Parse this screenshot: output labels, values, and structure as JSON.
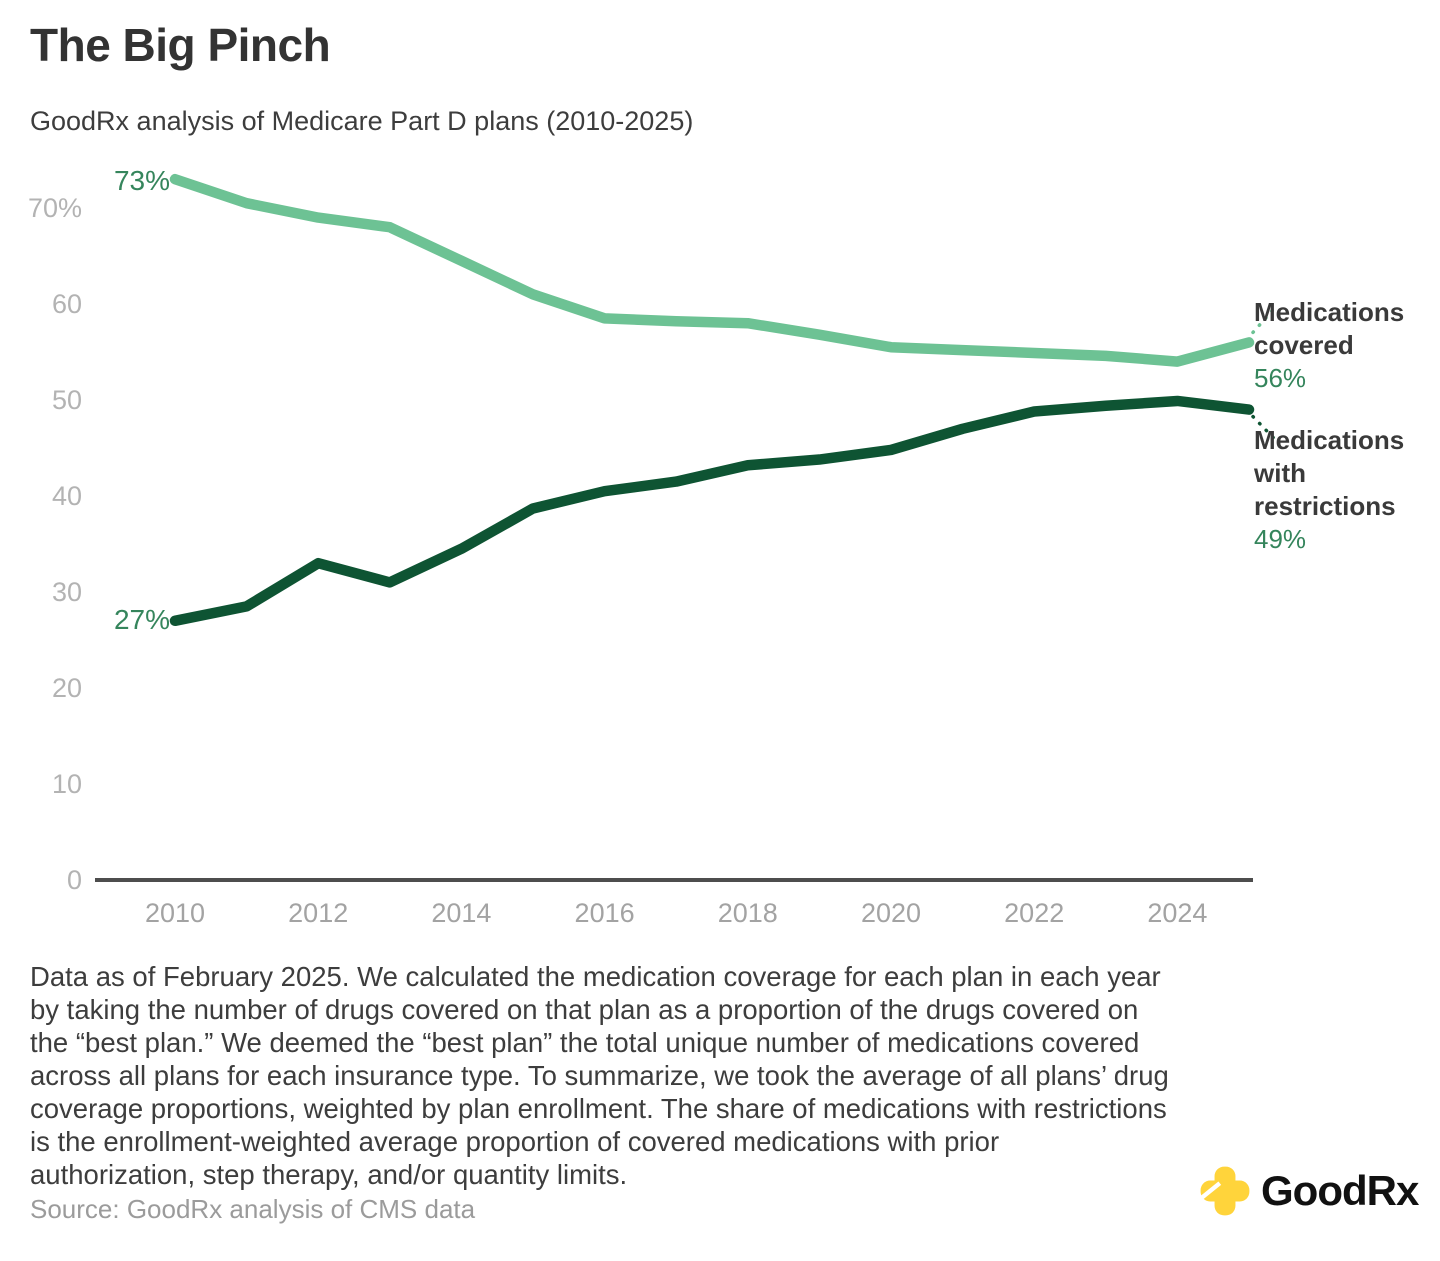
{
  "title": "The Big Pinch",
  "subtitle": "GoodRx analysis of Medicare Part D plans (2010-2025)",
  "chart_data": {
    "type": "line",
    "x": [
      2010,
      2011,
      2012,
      2013,
      2014,
      2015,
      2016,
      2017,
      2018,
      2019,
      2020,
      2021,
      2022,
      2023,
      2024,
      2025
    ],
    "series": [
      {
        "name": "Medications covered",
        "color": "#6dc294",
        "values": [
          73,
          70.5,
          69,
          68,
          64.5,
          61,
          58.5,
          58.2,
          58,
          56.8,
          55.5,
          55.2,
          54.9,
          54.6,
          54,
          56
        ],
        "start_label": "73%",
        "end_label": "Medications covered",
        "end_value_label": "56%"
      },
      {
        "name": "Medications with restrictions",
        "color": "#0e5433",
        "values": [
          27,
          28.5,
          33,
          31,
          34.5,
          38.7,
          40.5,
          41.5,
          43.2,
          43.8,
          44.8,
          47,
          48.8,
          49.4,
          49.9,
          49
        ],
        "start_label": "27%",
        "end_label": "Medications with restrictions",
        "end_value_label": "49%"
      }
    ],
    "ylim": [
      0,
      75
    ],
    "yticks": {
      "values": [
        70,
        60,
        50,
        40,
        30,
        20,
        10,
        0
      ],
      "labels": [
        "70%",
        "60",
        "50",
        "40",
        "30",
        "20",
        "10",
        "0"
      ]
    },
    "xticks": {
      "values": [
        2010,
        2012,
        2014,
        2016,
        2018,
        2020,
        2022,
        2024
      ],
      "labels": [
        "2010",
        "2012",
        "2014",
        "2016",
        "2018",
        "2020",
        "2022",
        "2024"
      ]
    },
    "grid": false,
    "legend_position": "right-annotations",
    "xlabel": "",
    "ylabel": ""
  },
  "footnote": "Data as of February 2025. We calculated the medication coverage for each plan in each year by taking the number of drugs covered on that plan as a proportion of the drugs covered on the “best plan.” We deemed the “best plan” the total unique number of medications covered across all plans for each insurance type. To summarize, we took the average of all plans’ drug coverage proportions, weighted by plan enrollment. The share of medications with restrictions is the enrollment-weighted average proportion of covered medications with prior authorization, step therapy, and/or quantity limits.",
  "source": "Source: GoodRx analysis of CMS data",
  "logo_text": "GoodRx",
  "colors": {
    "covered_line": "#6dc294",
    "restrictions_line": "#0e5433",
    "value_text": "#35855c",
    "axis_line": "#4d4d4d",
    "y_tick_text": "#b3b3b3",
    "x_tick_text": "#a3a3a3",
    "logo_yellow": "#ffd43b"
  }
}
